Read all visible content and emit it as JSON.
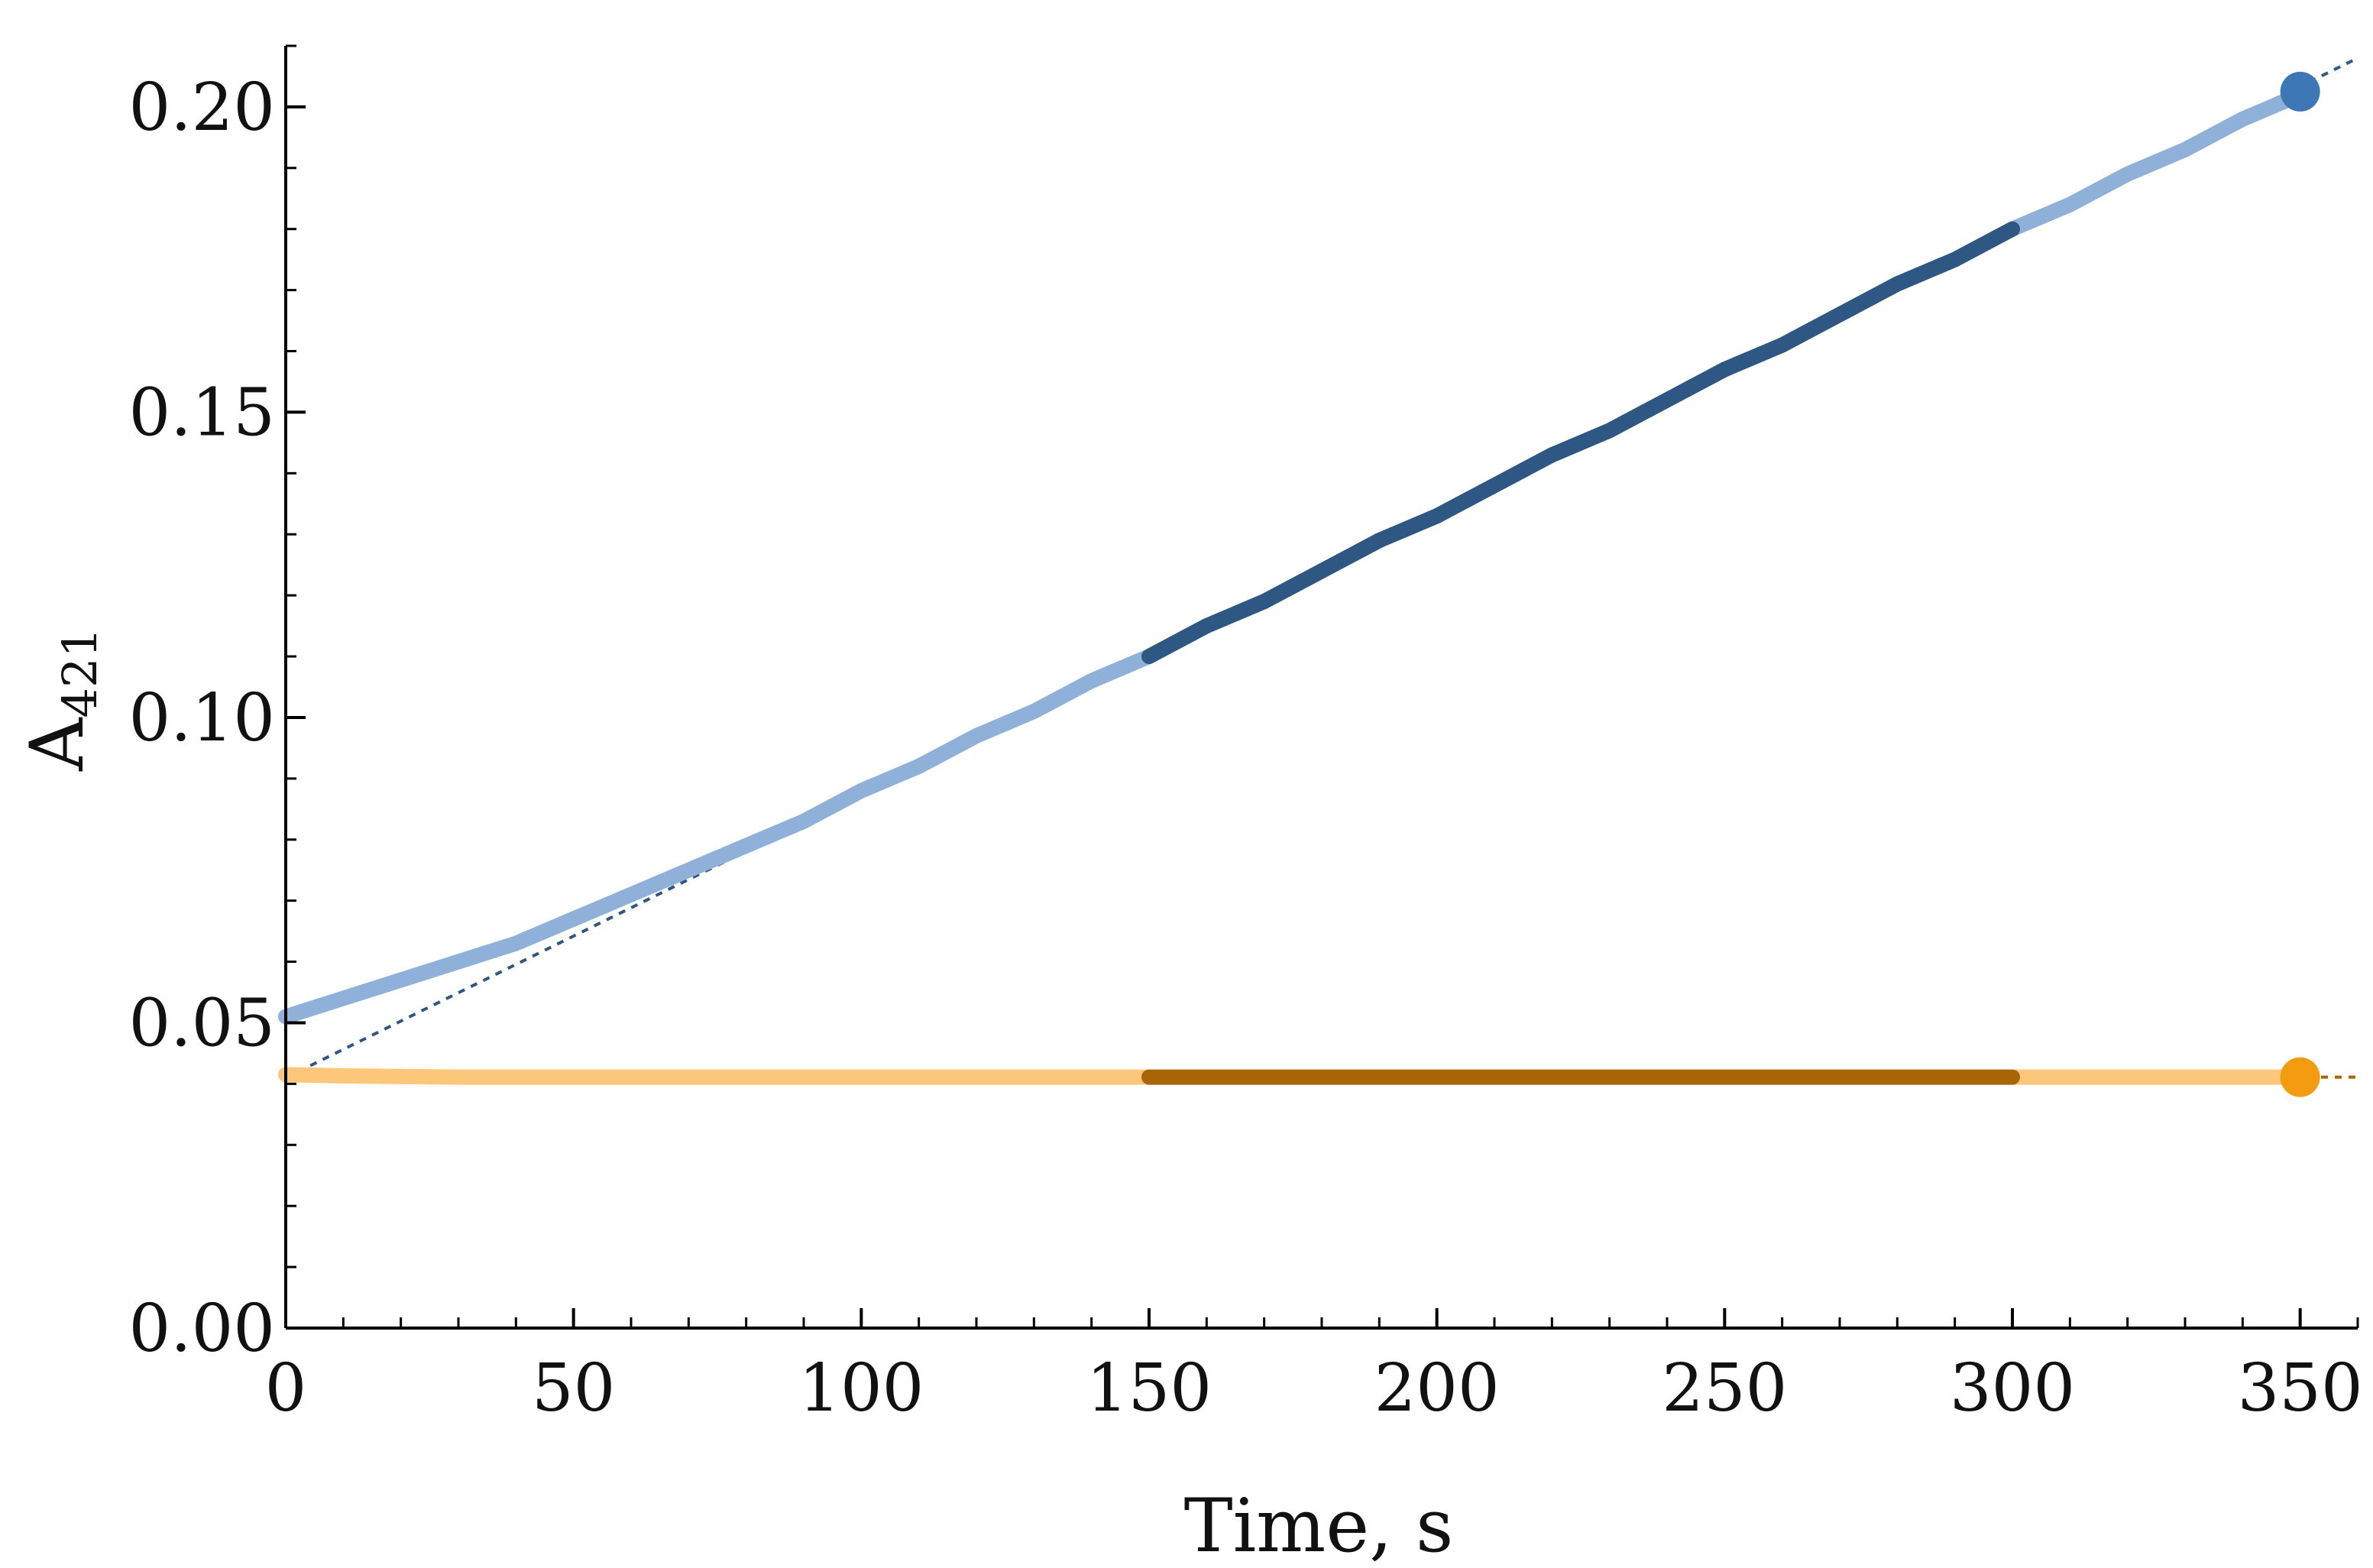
{
  "chart_data": {
    "type": "scatter",
    "title": "",
    "xlabel": "Time, s",
    "ylabel_main": "A",
    "ylabel_sub": "421",
    "xlim": [
      0,
      360
    ],
    "ylim": [
      0,
      0.21
    ],
    "x_ticks": [
      0,
      50,
      100,
      150,
      200,
      250,
      300,
      350
    ],
    "x_tick_labels": [
      "0",
      "50",
      "100",
      "150",
      "200",
      "250",
      "300",
      "350"
    ],
    "y_ticks": [
      0,
      0.05,
      0.1,
      0.15,
      0.2
    ],
    "y_tick_labels": [
      "0.00",
      "0.05",
      "0.10",
      "0.15",
      "0.20"
    ],
    "grid": false,
    "legend": "none",
    "fit_window": [
      150,
      300
    ],
    "series": [
      {
        "color": "#8fb1d9",
        "color_fit_window": "#2f5784",
        "fit_line_color": "#2f5784",
        "endpoint_color": "#3d77b5",
        "x": [
          0,
          10,
          20,
          30,
          40,
          50,
          60,
          70,
          80,
          90,
          100,
          110,
          120,
          130,
          140,
          150,
          160,
          170,
          180,
          190,
          200,
          210,
          220,
          230,
          240,
          250,
          260,
          270,
          280,
          290,
          300,
          310,
          320,
          330,
          340,
          350
        ],
        "y": [
          0.051,
          0.054,
          0.057,
          0.06,
          0.063,
          0.067,
          0.071,
          0.075,
          0.079,
          0.083,
          0.088,
          0.092,
          0.097,
          0.101,
          0.106,
          0.11,
          0.115,
          0.119,
          0.124,
          0.129,
          0.133,
          0.138,
          0.143,
          0.147,
          0.152,
          0.157,
          0.161,
          0.166,
          0.171,
          0.175,
          0.18,
          0.184,
          0.189,
          0.193,
          0.198,
          0.202
        ],
        "fit_line": {
          "x": [
            0,
            360
          ],
          "y": [
            0.041,
            0.208
          ]
        },
        "endpoint": {
          "x": 350,
          "y": 0.2025
        }
      },
      {
        "color": "#fcc77a",
        "color_fit_window": "#a86508",
        "fit_line_color": "#a86508",
        "endpoint_color": "#f39c12",
        "x": [
          0,
          10,
          20,
          30,
          40,
          50,
          60,
          70,
          80,
          90,
          100,
          110,
          120,
          130,
          140,
          150,
          160,
          170,
          180,
          190,
          200,
          210,
          220,
          230,
          240,
          250,
          260,
          270,
          280,
          290,
          300,
          310,
          320,
          330,
          340,
          350
        ],
        "y": [
          0.0415,
          0.0413,
          0.0412,
          0.0411,
          0.0411,
          0.0411,
          0.0411,
          0.0411,
          0.0411,
          0.0411,
          0.0411,
          0.0411,
          0.0411,
          0.0411,
          0.0411,
          0.0411,
          0.0411,
          0.0411,
          0.0411,
          0.0411,
          0.0411,
          0.0411,
          0.0411,
          0.0411,
          0.0411,
          0.0411,
          0.0411,
          0.0411,
          0.0411,
          0.0411,
          0.0411,
          0.0411,
          0.0411,
          0.0411,
          0.0411,
          0.0411
        ],
        "fit_line": {
          "x": [
            0,
            360
          ],
          "y": [
            0.0411,
            0.0411
          ]
        },
        "endpoint": {
          "x": 350,
          "y": 0.0411
        }
      }
    ]
  }
}
